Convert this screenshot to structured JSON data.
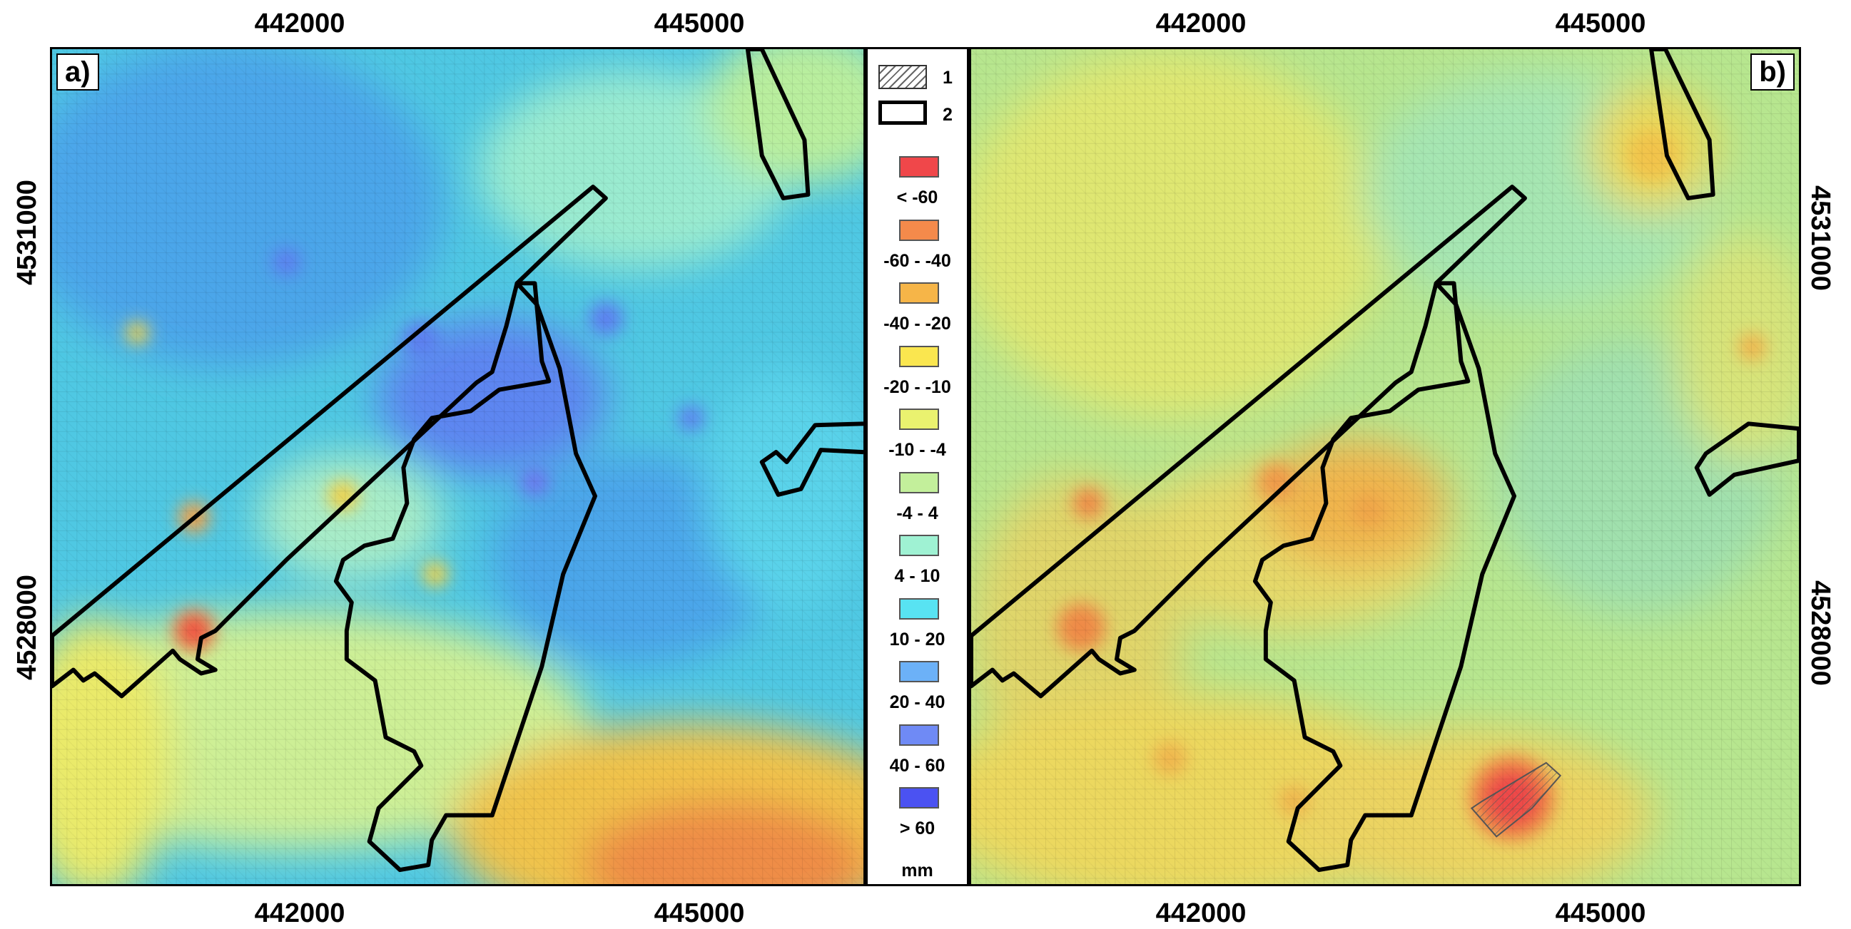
{
  "panels": [
    {
      "label": "a)"
    },
    {
      "label": "b)"
    }
  ],
  "axes": {
    "x_ticks": [
      "442000",
      "445000"
    ],
    "y_ticks": [
      "4531000",
      "4528000"
    ]
  },
  "legend": {
    "symbols": [
      {
        "label": "1",
        "icon": "hatched-polygon-icon"
      },
      {
        "label": "2",
        "icon": "thick-outline-polygon-icon"
      }
    ],
    "classes": [
      {
        "label": "< -60",
        "color": "#f0474a"
      },
      {
        "label": "-60 - -40",
        "color": "#f48a4b"
      },
      {
        "label": "-40 - -20",
        "color": "#f6b548"
      },
      {
        "label": "-20 - -10",
        "color": "#fae64f"
      },
      {
        "label": "-10 - -4",
        "color": "#eaf26f"
      },
      {
        "label": "-4 - 4",
        "color": "#c3ef9b"
      },
      {
        "label": "4 - 10",
        "color": "#9ff2d3"
      },
      {
        "label": "10 - 20",
        "color": "#58e3f2"
      },
      {
        "label": "20 - 40",
        "color": "#6cb1f7"
      },
      {
        "label": "40 - 60",
        "color": "#6f8af5"
      },
      {
        "label": "> 60",
        "color": "#4b52f2"
      }
    ],
    "unit": "mm"
  }
}
